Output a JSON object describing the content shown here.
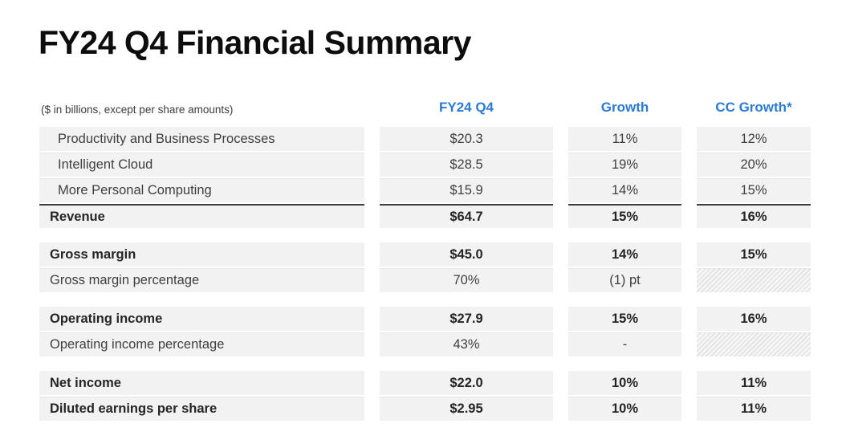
{
  "title": "FY24 Q4 Financial Summary",
  "table": {
    "note": "($ in billions, except per share amounts)",
    "columns": [
      "FY24 Q4",
      "Growth",
      "CC Growth*"
    ],
    "accent_color": "#2b7bd6",
    "row_background_color": "#f2f2f2",
    "sections": [
      {
        "rows": [
          {
            "label": "Productivity and Business Processes",
            "values": [
              "$20.3",
              "11%",
              "12%"
            ],
            "indent": true,
            "bold": false
          },
          {
            "label": "Intelligent Cloud",
            "values": [
              "$28.5",
              "19%",
              "20%"
            ],
            "indent": true,
            "bold": false
          },
          {
            "label": "More Personal Computing",
            "values": [
              "$15.9",
              "14%",
              "15%"
            ],
            "indent": true,
            "bold": false
          },
          {
            "label": "Revenue",
            "values": [
              "$64.7",
              "15%",
              "16%"
            ],
            "bold": true,
            "topline": true
          }
        ]
      },
      {
        "rows": [
          {
            "label": "Gross margin",
            "values": [
              "$45.0",
              "14%",
              "15%"
            ],
            "bold": true
          },
          {
            "label": "Gross margin percentage",
            "values": [
              "70%",
              "(1) pt",
              null
            ],
            "bold": false,
            "hatched": [
              false,
              false,
              true
            ]
          }
        ]
      },
      {
        "rows": [
          {
            "label": "Operating income",
            "values": [
              "$27.9",
              "15%",
              "16%"
            ],
            "bold": true
          },
          {
            "label": "Operating income percentage",
            "values": [
              "43%",
              "-",
              null
            ],
            "bold": false,
            "hatched": [
              false,
              false,
              true
            ]
          }
        ]
      },
      {
        "rows": [
          {
            "label": "Net income",
            "values": [
              "$22.0",
              "10%",
              "11%"
            ],
            "bold": true
          },
          {
            "label": "Diluted earnings per share",
            "values": [
              "$2.95",
              "10%",
              "11%"
            ],
            "bold": true
          }
        ]
      }
    ]
  }
}
